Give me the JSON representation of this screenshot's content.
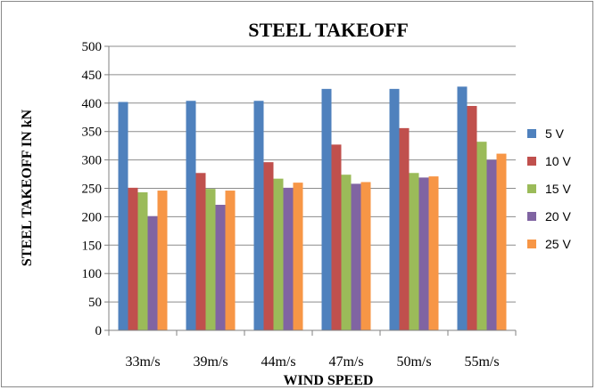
{
  "chart_data": {
    "type": "bar",
    "title": "STEEL TAKEOFF",
    "xlabel": "WIND SPEED",
    "ylabel": "STEEL TAKEOFF IN kN",
    "ylim": [
      0,
      500
    ],
    "yticks": [
      0,
      50,
      100,
      150,
      200,
      250,
      300,
      350,
      400,
      450,
      500
    ],
    "grid": true,
    "legend_position": "right",
    "categories": [
      "33m/s",
      "39m/s",
      "44m/s",
      "47m/s",
      "50m/s",
      "55m/s"
    ],
    "series": [
      {
        "name": "5 V",
        "color": "#4F81BD",
        "values": [
          402,
          404,
          404,
          425,
          425,
          429
        ]
      },
      {
        "name": "10 V",
        "color": "#C0504D",
        "values": [
          251,
          277,
          296,
          327,
          356,
          395
        ]
      },
      {
        "name": "15 V",
        "color": "#9BBB59",
        "values": [
          243,
          249,
          267,
          274,
          277,
          332
        ]
      },
      {
        "name": "20 V",
        "color": "#8064A2",
        "values": [
          201,
          221,
          251,
          258,
          269,
          300
        ]
      },
      {
        "name": "25 V",
        "color": "#F79646",
        "values": [
          246,
          246,
          260,
          261,
          271,
          311
        ]
      }
    ]
  }
}
